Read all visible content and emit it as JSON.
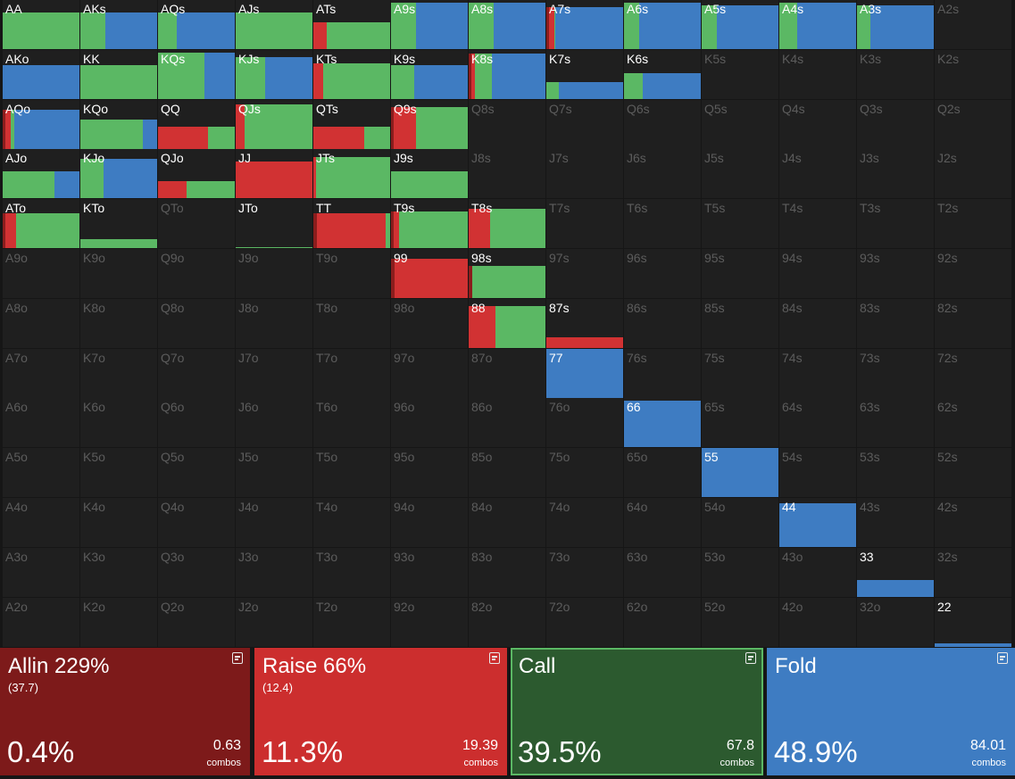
{
  "palette": {
    "allin": "#8b1d1d",
    "raise": "#d13233",
    "call": "#5bb864",
    "fold": "#3e7cc2"
  },
  "hand_grid": {
    "rows": [
      [
        "AA",
        "AKs",
        "AQs",
        "AJs",
        "ATs",
        "A9s",
        "A8s",
        "A7s",
        "A6s",
        "A5s",
        "A4s",
        "A3s",
        "A2s"
      ],
      [
        "AKo",
        "KK",
        "KQs",
        "KJs",
        "KTs",
        "K9s",
        "K8s",
        "K7s",
        "K6s",
        "K5s",
        "K4s",
        "K3s",
        "K2s"
      ],
      [
        "AQo",
        "KQo",
        "QQ",
        "QJs",
        "QTs",
        "Q9s",
        "Q8s",
        "Q7s",
        "Q6s",
        "Q5s",
        "Q4s",
        "Q3s",
        "Q2s"
      ],
      [
        "AJo",
        "KJo",
        "QJo",
        "JJ",
        "JTs",
        "J9s",
        "J8s",
        "J7s",
        "J6s",
        "J5s",
        "J4s",
        "J3s",
        "J2s"
      ],
      [
        "ATo",
        "KTo",
        "QTo",
        "JTo",
        "TT",
        "T9s",
        "T8s",
        "T7s",
        "T6s",
        "T5s",
        "T4s",
        "T3s",
        "T2s"
      ],
      [
        "A9o",
        "K9o",
        "Q9o",
        "J9o",
        "T9o",
        "99",
        "98s",
        "97s",
        "96s",
        "95s",
        "94s",
        "93s",
        "92s"
      ],
      [
        "A8o",
        "K8o",
        "Q8o",
        "J8o",
        "T8o",
        "98o",
        "88",
        "87s",
        "86s",
        "85s",
        "84s",
        "83s",
        "82s"
      ],
      [
        "A7o",
        "K7o",
        "Q7o",
        "J7o",
        "T7o",
        "97o",
        "87o",
        "77",
        "76s",
        "75s",
        "74s",
        "73s",
        "72s"
      ],
      [
        "A6o",
        "K6o",
        "Q6o",
        "J6o",
        "T6o",
        "96o",
        "86o",
        "76o",
        "66",
        "65s",
        "64s",
        "63s",
        "62s"
      ],
      [
        "A5o",
        "K5o",
        "Q5o",
        "J5o",
        "T5o",
        "95o",
        "85o",
        "75o",
        "65o",
        "55",
        "54s",
        "53s",
        "52s"
      ],
      [
        "A4o",
        "K4o",
        "Q4o",
        "J4o",
        "T4o",
        "94o",
        "84o",
        "74o",
        "64o",
        "54o",
        "44",
        "43s",
        "42s"
      ],
      [
        "A3o",
        "K3o",
        "Q3o",
        "J3o",
        "T3o",
        "93o",
        "83o",
        "73o",
        "63o",
        "53o",
        "43o",
        "33",
        "32s"
      ],
      [
        "A2o",
        "K2o",
        "Q2o",
        "J2o",
        "T2o",
        "92o",
        "82o",
        "72o",
        "62o",
        "52o",
        "42o",
        "32o",
        "22"
      ]
    ],
    "frequencies": {
      "AA": {
        "freq": 0.75,
        "mix": [
          0,
          0,
          1,
          0
        ]
      },
      "AKs": {
        "freq": 0.75,
        "mix": [
          0,
          0,
          0.32,
          0.68
        ]
      },
      "AQs": {
        "freq": 0.75,
        "mix": [
          0,
          0,
          0.24,
          0.76
        ]
      },
      "AJs": {
        "freq": 0.75,
        "mix": [
          0,
          0,
          1,
          0
        ]
      },
      "ATs": {
        "freq": 0.55,
        "mix": [
          0,
          0.17,
          0.83,
          0
        ]
      },
      "A9s": {
        "freq": 0.95,
        "mix": [
          0,
          0,
          0.33,
          0.67
        ]
      },
      "A8s": {
        "freq": 0.95,
        "mix": [
          0,
          0,
          0.33,
          0.67
        ]
      },
      "A7s": {
        "freq": 0.85,
        "mix": [
          0.04,
          0.06,
          0.02,
          0.88
        ]
      },
      "A6s": {
        "freq": 0.95,
        "mix": [
          0,
          0,
          0.2,
          0.8
        ]
      },
      "A5s": {
        "freq": 0.9,
        "mix": [
          0,
          0,
          0.2,
          0.8
        ]
      },
      "A4s": {
        "freq": 0.95,
        "mix": [
          0,
          0,
          0.23,
          0.77
        ]
      },
      "A3s": {
        "freq": 0.9,
        "mix": [
          0,
          0,
          0.17,
          0.83
        ]
      },
      "AKo": {
        "freq": 0.68,
        "mix": [
          0,
          0,
          0,
          1
        ]
      },
      "KK": {
        "freq": 0.68,
        "mix": [
          0,
          0,
          1,
          0
        ]
      },
      "KQs": {
        "freq": 0.95,
        "mix": [
          0,
          0,
          0.6,
          0.4
        ]
      },
      "KJs": {
        "freq": 0.85,
        "mix": [
          0,
          0,
          0.38,
          0.62
        ]
      },
      "KTs": {
        "freq": 0.72,
        "mix": [
          0,
          0.13,
          0.87,
          0
        ]
      },
      "K9s": {
        "freq": 0.68,
        "mix": [
          0,
          0,
          0.3,
          0.7
        ]
      },
      "K8s": {
        "freq": 0.93,
        "mix": [
          0.03,
          0.05,
          0.22,
          0.7
        ]
      },
      "K7s": {
        "freq": 0.35,
        "mix": [
          0,
          0,
          0.16,
          0.84
        ]
      },
      "K6s": {
        "freq": 0.53,
        "mix": [
          0,
          0,
          0.24,
          0.76
        ]
      },
      "AQo": {
        "freq": 0.8,
        "mix": [
          0.04,
          0.06,
          0.05,
          0.85
        ]
      },
      "KQo": {
        "freq": 0.6,
        "mix": [
          0,
          0,
          0.81,
          0.19
        ]
      },
      "QQ": {
        "freq": 0.45,
        "mix": [
          0,
          0.65,
          0.35,
          0
        ]
      },
      "QJs": {
        "freq": 0.9,
        "mix": [
          0,
          0.12,
          0.88,
          0
        ]
      },
      "QTs": {
        "freq": 0.45,
        "mix": [
          0,
          0.66,
          0.34,
          0
        ]
      },
      "Q9s": {
        "freq": 0.85,
        "mix": [
          0.03,
          0.3,
          0.67,
          0
        ]
      },
      "AJo": {
        "freq": 0.55,
        "mix": [
          0,
          0,
          0.67,
          0.33
        ]
      },
      "KJo": {
        "freq": 0.8,
        "mix": [
          0,
          0,
          0.3,
          0.7
        ]
      },
      "QJo": {
        "freq": 0.35,
        "mix": [
          0,
          0.37,
          0.63,
          0
        ]
      },
      "JJ": {
        "freq": 0.75,
        "mix": [
          0,
          1,
          0,
          0
        ]
      },
      "JTs": {
        "freq": 0.85,
        "mix": [
          0,
          0.03,
          0.97,
          0
        ]
      },
      "J9s": {
        "freq": 0.55,
        "mix": [
          0,
          0,
          1,
          0
        ]
      },
      "ATo": {
        "freq": 0.72,
        "mix": [
          0.03,
          0.14,
          0.83,
          0
        ]
      },
      "KTo": {
        "freq": 0.18,
        "mix": [
          0,
          0,
          1,
          0
        ]
      },
      "JTo": {
        "freq": 0.02,
        "mix": [
          0,
          0,
          1,
          0
        ]
      },
      "TT": {
        "freq": 0.72,
        "mix": [
          0.05,
          0.89,
          0.06,
          0
        ]
      },
      "T9s": {
        "freq": 0.75,
        "mix": [
          0.04,
          0.06,
          0.9,
          0
        ]
      },
      "T8s": {
        "freq": 0.8,
        "mix": [
          0,
          0.28,
          0.72,
          0
        ]
      },
      "99": {
        "freq": 0.8,
        "mix": [
          0.05,
          0.95,
          0,
          0
        ]
      },
      "98s": {
        "freq": 0.65,
        "mix": [
          0.05,
          0,
          0.95,
          0
        ]
      },
      "88": {
        "freq": 0.85,
        "mix": [
          0,
          0.35,
          0.65,
          0
        ]
      },
      "87s": {
        "freq": 0.22,
        "mix": [
          0,
          1,
          0,
          0
        ]
      },
      "77": {
        "freq": 1,
        "mix": [
          0,
          0,
          0,
          1
        ]
      },
      "66": {
        "freq": 0.95,
        "mix": [
          0,
          0,
          0,
          1
        ]
      },
      "55": {
        "freq": 1,
        "mix": [
          0,
          0,
          0,
          1
        ]
      },
      "44": {
        "freq": 0.9,
        "mix": [
          0,
          0,
          0,
          1
        ]
      },
      "33": {
        "freq": 0.35,
        "mix": [
          0,
          0,
          0,
          1
        ]
      },
      "22": {
        "freq": 0.06,
        "mix": [
          0,
          0,
          0,
          1
        ]
      }
    }
  },
  "actions": [
    {
      "key": "allin",
      "title": "Allin 229%",
      "sub": "(37.7)",
      "pct": "0.4%",
      "combos": "0.63",
      "combos_label": "combos",
      "bg": "#7d1a1a",
      "border": "#7d1a1a",
      "icon": "notes-icon"
    },
    {
      "key": "raise",
      "title": "Raise 66%",
      "sub": "(12.4)",
      "pct": "11.3%",
      "combos": "19.39",
      "combos_label": "combos",
      "bg": "#cc2e2e",
      "border": "#cc2e2e",
      "icon": "notes-icon"
    },
    {
      "key": "call",
      "title": "Call",
      "sub": "",
      "pct": "39.5%",
      "combos": "67.8",
      "combos_label": "combos",
      "bg": "#2c5a2f",
      "border": "#5bb864",
      "icon": "notes-icon"
    },
    {
      "key": "fold",
      "title": "Fold",
      "sub": "",
      "pct": "48.9%",
      "combos": "84.01",
      "combos_label": "combos",
      "bg": "#3e7cc2",
      "border": "#3e7cc2",
      "icon": "notes-icon"
    }
  ]
}
